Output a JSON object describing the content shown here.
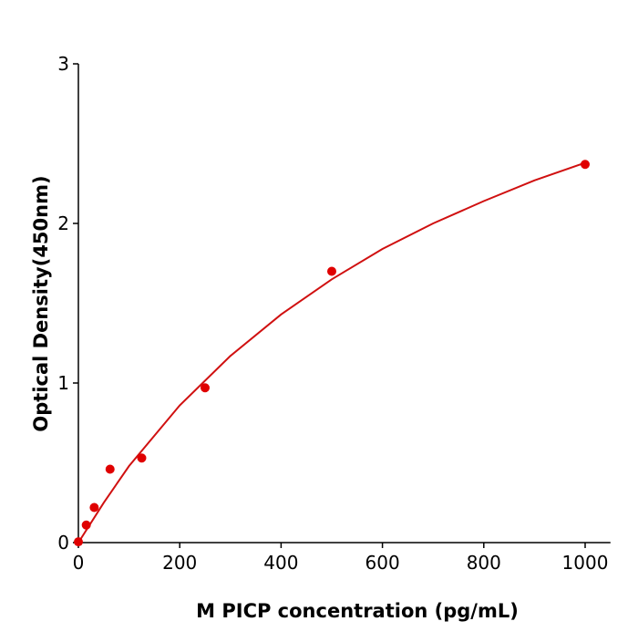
{
  "chart_data": {
    "type": "scatter",
    "title": "",
    "xlabel": "M  PICP concentration (pg/mL)",
    "ylabel": "Optical Density(450nm)",
    "xlim": [
      0,
      1050
    ],
    "ylim": [
      0,
      3
    ],
    "xticks": [
      "0",
      "200",
      "400",
      "600",
      "800",
      "1000"
    ],
    "yticks": [
      "0",
      "1",
      "2",
      "3"
    ],
    "grid": false,
    "color": "#e00000",
    "curve_color": "#d01010",
    "points": [
      {
        "x": 0,
        "y": 0.005
      },
      {
        "x": 15.6,
        "y": 0.11
      },
      {
        "x": 31.25,
        "y": 0.22
      },
      {
        "x": 62.5,
        "y": 0.46
      },
      {
        "x": 125,
        "y": 0.53
      },
      {
        "x": 250,
        "y": 0.97
      },
      {
        "x": 500,
        "y": 1.7
      },
      {
        "x": 1000,
        "y": 2.37
      }
    ],
    "fit_curve": [
      {
        "x": 0,
        "y": 0
      },
      {
        "x": 50,
        "y": 0.25
      },
      {
        "x": 100,
        "y": 0.48
      },
      {
        "x": 200,
        "y": 0.86
      },
      {
        "x": 300,
        "y": 1.17
      },
      {
        "x": 400,
        "y": 1.43
      },
      {
        "x": 500,
        "y": 1.65
      },
      {
        "x": 600,
        "y": 1.84
      },
      {
        "x": 700,
        "y": 2.0
      },
      {
        "x": 800,
        "y": 2.14
      },
      {
        "x": 900,
        "y": 2.27
      },
      {
        "x": 1000,
        "y": 2.38
      }
    ]
  }
}
